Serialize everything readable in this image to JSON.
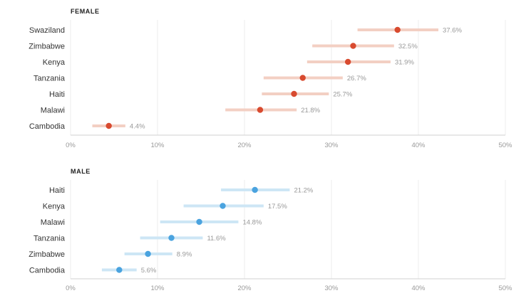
{
  "chart_data": [
    {
      "type": "scatter",
      "title": "FEMALE",
      "xlim": [
        0,
        50
      ],
      "xticks": [
        "0%",
        "10%",
        "20%",
        "30%",
        "40%",
        "50%"
      ],
      "xtick_values": [
        0,
        10,
        20,
        30,
        40,
        50
      ],
      "categories": [
        "Swaziland",
        "Zimbabwe",
        "Kenya",
        "Tanzania",
        "Haiti",
        "Malawi",
        "Cambodia"
      ],
      "values": [
        37.6,
        32.5,
        31.9,
        26.7,
        25.7,
        21.8,
        4.4
      ],
      "value_labels": [
        "37.6%",
        "32.5%",
        "31.9%",
        "26.7%",
        "25.7%",
        "21.8%",
        "4.4%"
      ],
      "ci_low": [
        33.0,
        27.8,
        27.2,
        22.2,
        22.0,
        17.8,
        2.5
      ],
      "ci_high": [
        42.3,
        37.2,
        36.8,
        31.3,
        29.7,
        26.0,
        6.3
      ],
      "grid": true,
      "colors": {
        "point": "#d84a2f",
        "interval": "#f3cfc3"
      }
    },
    {
      "type": "scatter",
      "title": "MALE",
      "xlim": [
        0,
        50
      ],
      "xticks": [
        "0%",
        "10%",
        "20%",
        "30%",
        "40%",
        "50%"
      ],
      "xtick_values": [
        0,
        10,
        20,
        30,
        40,
        50
      ],
      "categories": [
        "Haiti",
        "Kenya",
        "Malawi",
        "Tanzania",
        "Zimbabwe",
        "Cambodia"
      ],
      "values": [
        21.2,
        17.5,
        14.8,
        11.6,
        8.9,
        5.6
      ],
      "value_labels": [
        "21.2%",
        "17.5%",
        "14.8%",
        "11.6%",
        "8.9%",
        "5.6%"
      ],
      "ci_low": [
        17.3,
        13.0,
        10.3,
        8.0,
        6.2,
        3.6
      ],
      "ci_high": [
        25.2,
        22.2,
        19.3,
        15.2,
        11.7,
        7.6
      ],
      "grid": true,
      "colors": {
        "point": "#4aa3df",
        "interval": "#cde6f5"
      }
    }
  ]
}
